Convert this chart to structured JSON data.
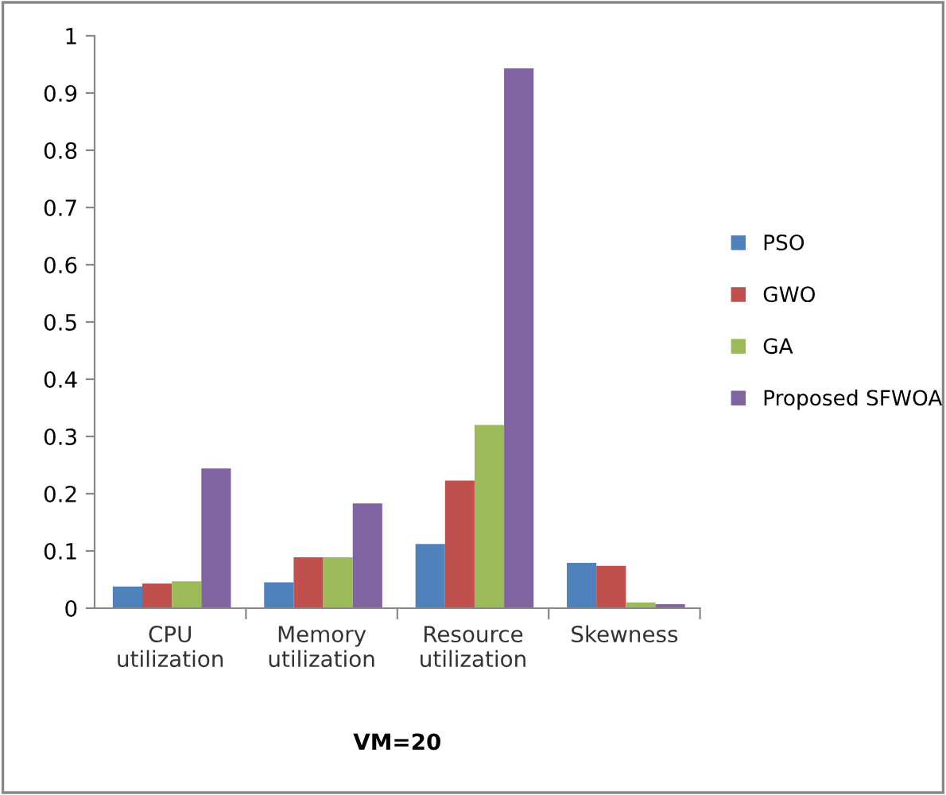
{
  "chart_data": {
    "type": "bar",
    "xlabel": "VM=20",
    "categories": [
      "CPU\nutilization",
      "Memory\nutilization",
      "Resource\nutilization",
      "Skewness"
    ],
    "series": [
      {
        "name": "PSO",
        "color": "#4f81bd",
        "values": [
          0.038,
          0.045,
          0.112,
          0.079
        ]
      },
      {
        "name": "GWO",
        "color": "#c0504d",
        "values": [
          0.043,
          0.089,
          0.223,
          0.074
        ]
      },
      {
        "name": "GA",
        "color": "#9bbb59",
        "values": [
          0.047,
          0.089,
          0.32,
          0.01
        ]
      },
      {
        "name": "Proposed SFWOA",
        "color": "#8064a2",
        "values": [
          0.244,
          0.183,
          0.943,
          0.007
        ]
      }
    ],
    "ylim": [
      0,
      1
    ],
    "yticks": [
      0,
      0.1,
      0.2,
      0.3,
      0.4,
      0.5,
      0.6,
      0.7,
      0.8,
      0.9,
      1
    ],
    "grid": false,
    "legend": "right"
  }
}
